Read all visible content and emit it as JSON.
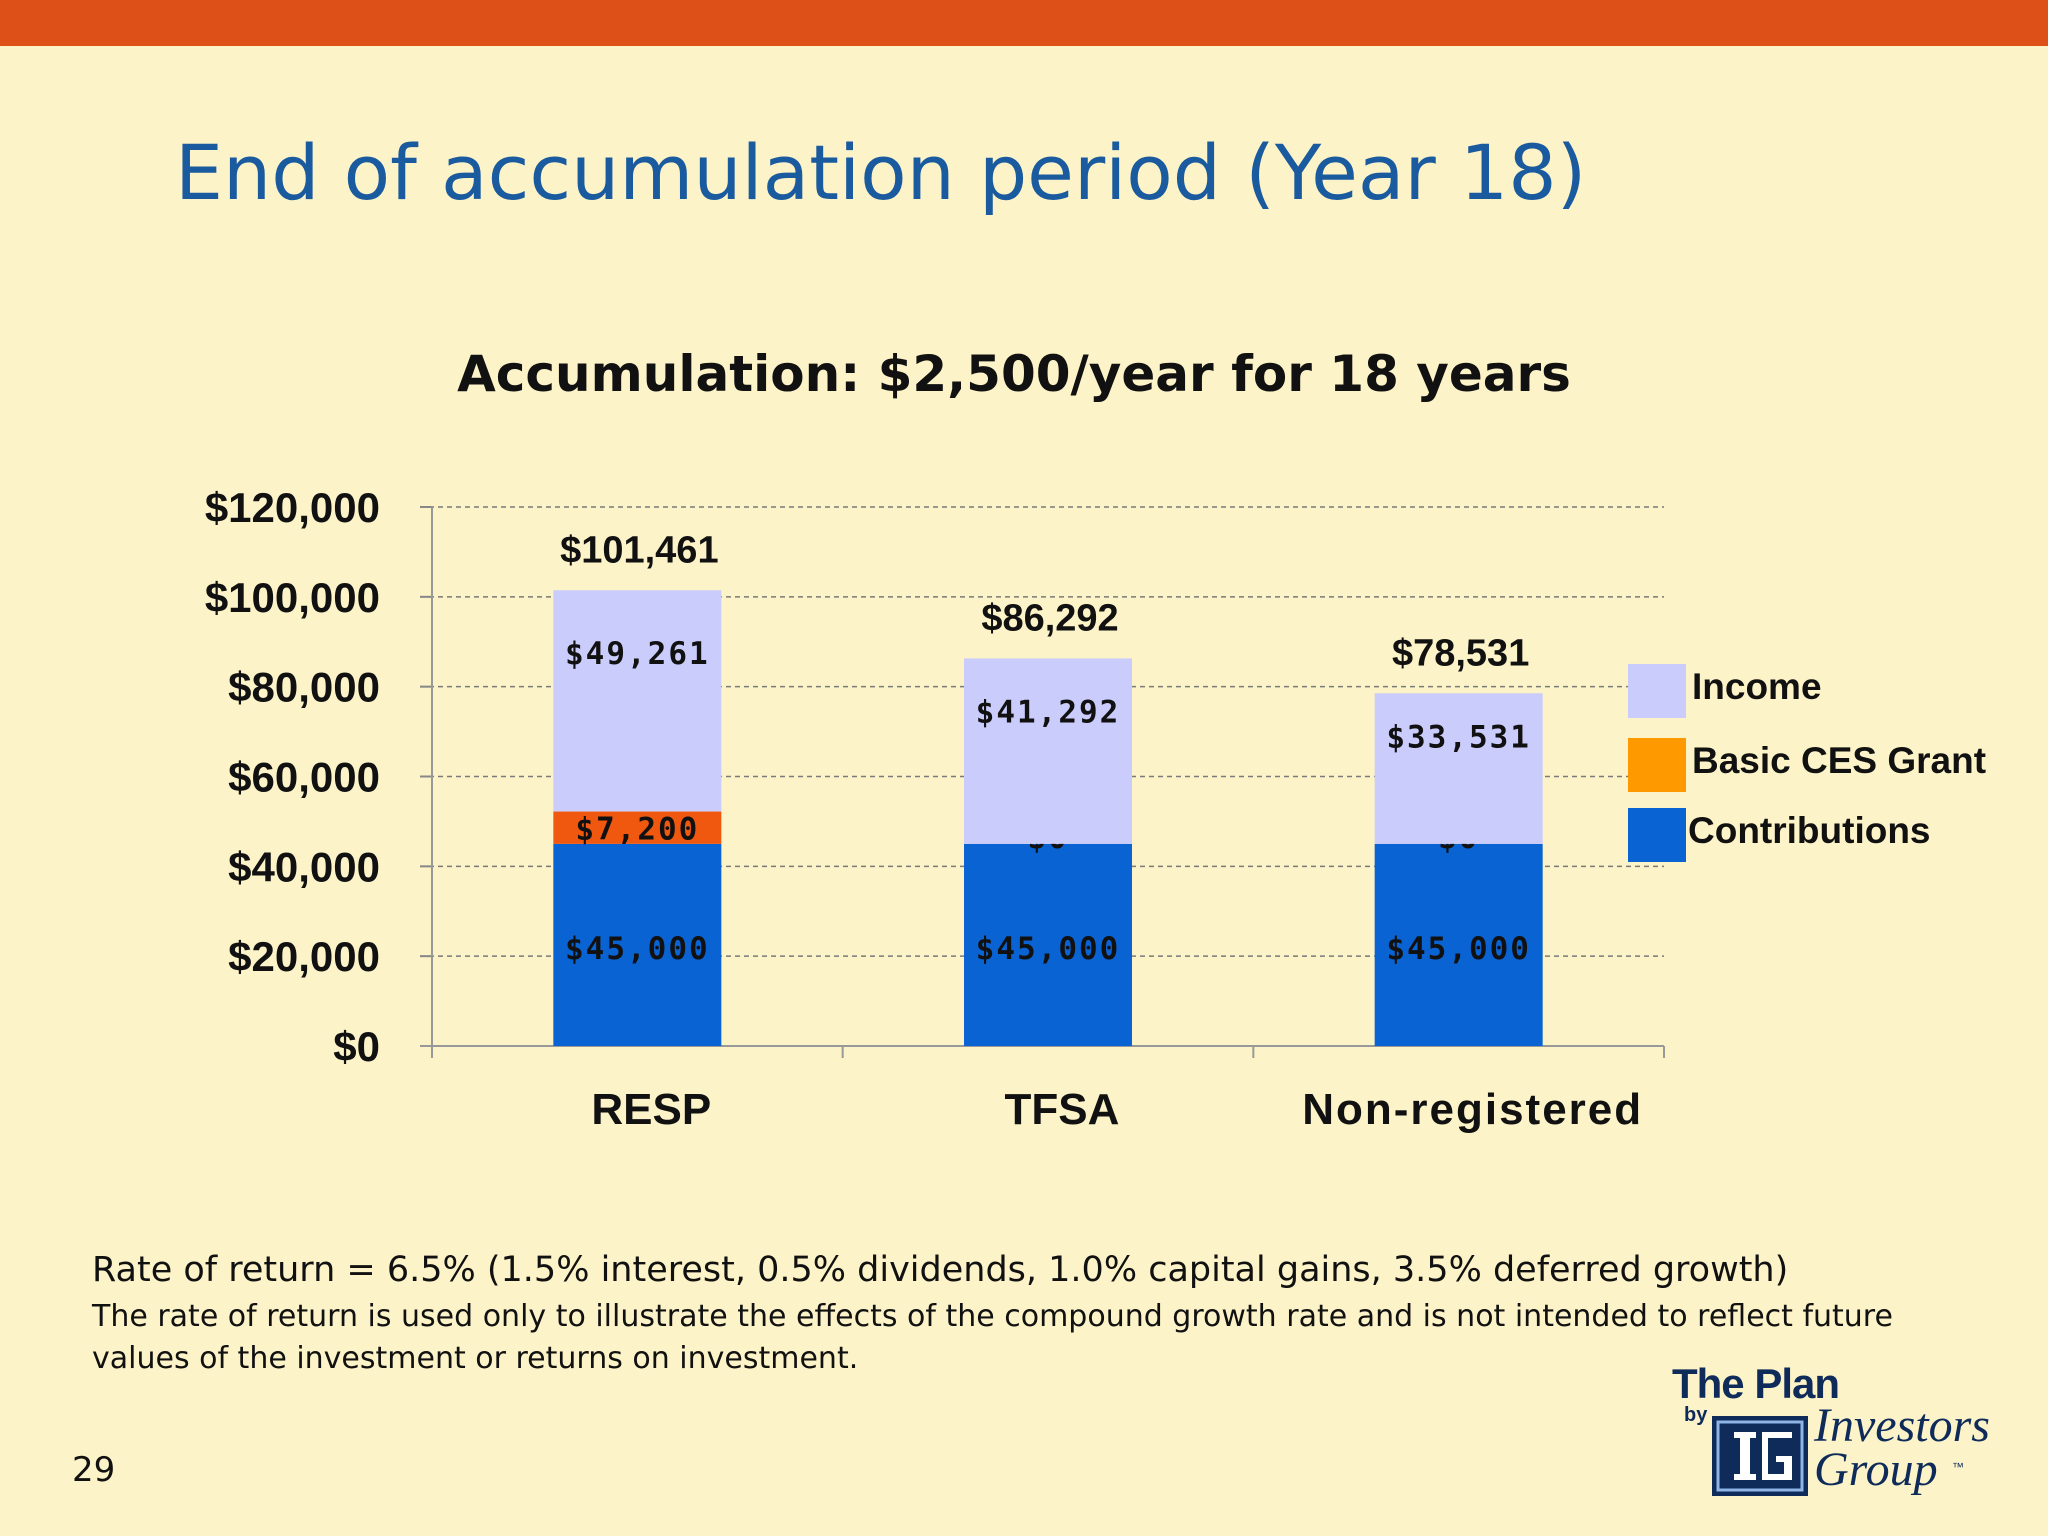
{
  "slide": {
    "title": "End of accumulation period (Year 18)",
    "page_number": "29",
    "top_bar_color": "#DD5018",
    "background_color": "#FCF3C8"
  },
  "chart_data": {
    "type": "bar",
    "stacked": true,
    "title": "Accumulation: $2,500/year for 18 years",
    "categories": [
      "RESP",
      "TFSA",
      "Non-registered"
    ],
    "series": [
      {
        "name": "Contributions",
        "values": [
          45000,
          45000,
          45000
        ],
        "labels": [
          "$45,000",
          "$45,000",
          "$45,000"
        ],
        "color": "#0A63D3"
      },
      {
        "name": "Basic CES Grant",
        "values": [
          7200,
          0,
          0
        ],
        "labels": [
          "$7,200",
          "$0",
          "$0"
        ],
        "color": "#F0580F"
      },
      {
        "name": "Income",
        "values": [
          49261,
          41292,
          33531
        ],
        "labels": [
          "$49,261",
          "$41,292",
          "$33,531"
        ],
        "color": "#CACCFB"
      }
    ],
    "totals": [
      "$101,461",
      "$86,292",
      "$78,531"
    ],
    "ylim": [
      0,
      120000
    ],
    "yticks": [
      0,
      20000,
      40000,
      60000,
      80000,
      100000,
      120000
    ],
    "ytick_labels": [
      "$0",
      "$20,000",
      "$40,000",
      "$60,000",
      "$80,000",
      "$100,000",
      "$120,000"
    ],
    "xlabel": "",
    "ylabel": "",
    "grid": "dashed horizontal",
    "legend_position": "right"
  },
  "legend": {
    "items": [
      {
        "label": "Income",
        "color": "#CACCFB"
      },
      {
        "label": "Basic CES Grant",
        "color": "#FF9900"
      },
      {
        "label": "Contributions",
        "color": "#0A63D3"
      }
    ]
  },
  "footnote": {
    "main": "Rate of return = 6.5% (1.5% interest, 0.5% dividends, 1.0% capital gains, 3.5% deferred growth)",
    "sub": "The rate of return is used only to illustrate the effects of the compound growth rate and is not intended to reflect future values of  the investment or returns on investment."
  },
  "logo": {
    "line1": "The Plan",
    "by": "by",
    "mark": "IG",
    "line2": "Investors",
    "line3": "Group",
    "tm": "™"
  }
}
